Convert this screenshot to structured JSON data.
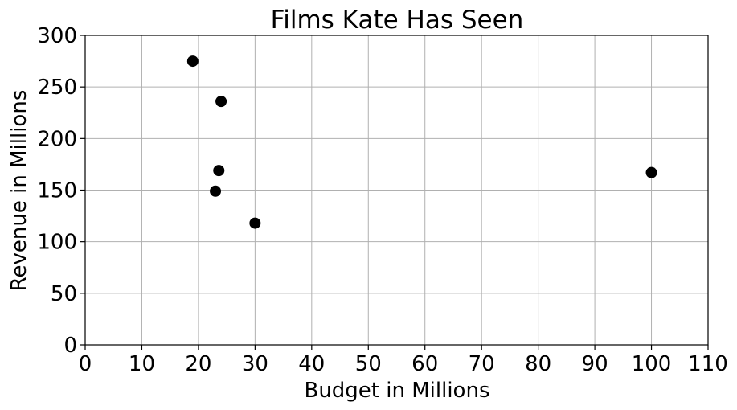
{
  "chart_data": {
    "type": "scatter",
    "title": "Films Kate Has Seen",
    "xlabel": "Budget in Millions",
    "ylabel": "Revenue in Millions",
    "xlim": [
      0,
      110
    ],
    "ylim": [
      0,
      300
    ],
    "xticks": [
      0,
      10,
      20,
      30,
      40,
      50,
      60,
      70,
      80,
      90,
      100,
      110
    ],
    "yticks": [
      0,
      50,
      100,
      150,
      200,
      250,
      300
    ],
    "grid": true,
    "color": "#000000",
    "points": [
      {
        "x": 19,
        "y": 275
      },
      {
        "x": 24,
        "y": 236
      },
      {
        "x": 23.6,
        "y": 169
      },
      {
        "x": 23,
        "y": 149
      },
      {
        "x": 30,
        "y": 118
      },
      {
        "x": 100,
        "y": 167
      }
    ]
  }
}
